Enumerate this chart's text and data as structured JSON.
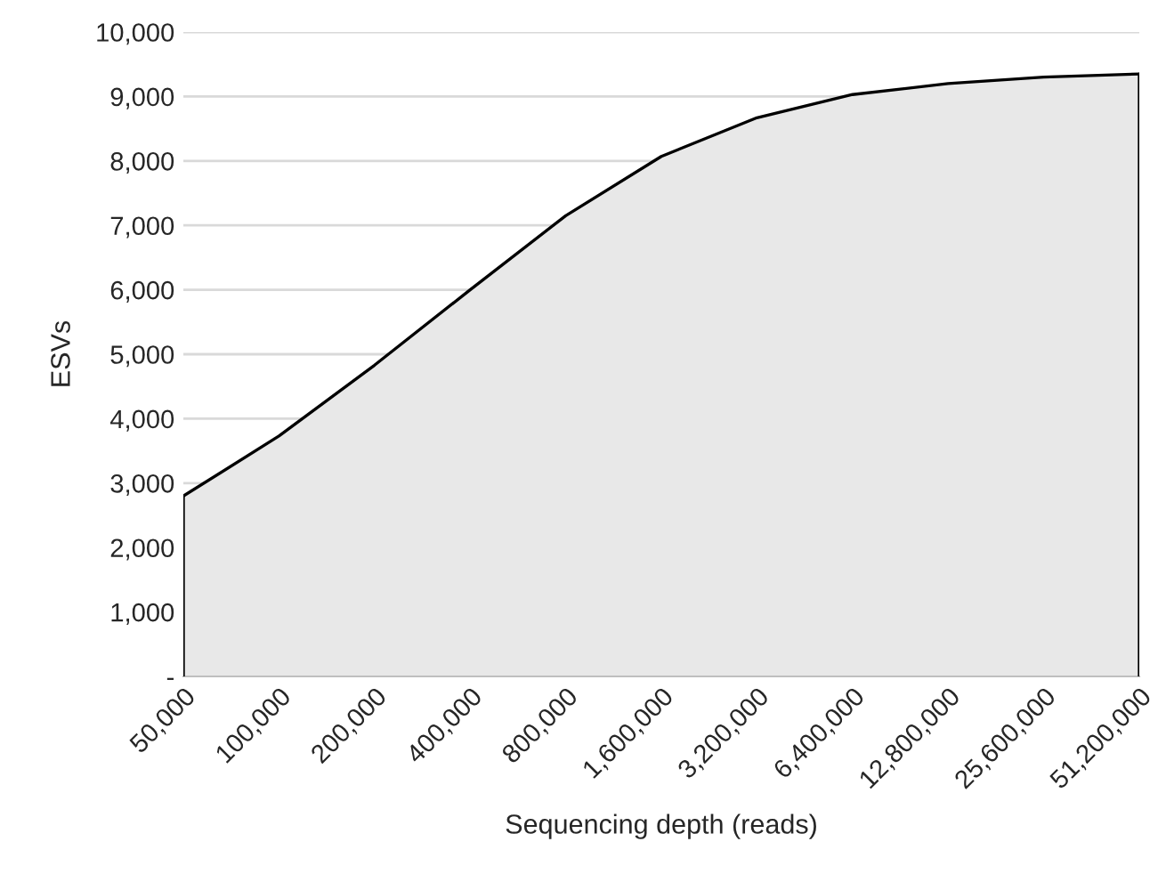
{
  "chart_data": {
    "type": "area",
    "xlabel": "Sequencing depth (reads)",
    "ylabel": "ESVs",
    "categories": [
      "50,000",
      "100,000",
      "200,000",
      "400,000",
      "800,000",
      "1,600,000",
      "3,200,000",
      "6,400,000",
      "12,800,000",
      "25,600,000",
      "51,200,000"
    ],
    "series": [
      {
        "color": "#e8e8e8",
        "values": [
          2800,
          3730,
          4830,
          6000,
          7150,
          8070,
          8670,
          9030,
          9200,
          9300,
          9350
        ]
      }
    ],
    "ylim": [
      0,
      10000
    ],
    "yticks": [
      {
        "value": 0,
        "label": "-"
      },
      {
        "value": 1000,
        "label": "1,000"
      },
      {
        "value": 2000,
        "label": "2,000"
      },
      {
        "value": 3000,
        "label": "3,000"
      },
      {
        "value": 4000,
        "label": "4,000"
      },
      {
        "value": 5000,
        "label": "5,000"
      },
      {
        "value": 6000,
        "label": "6,000"
      },
      {
        "value": 7000,
        "label": "7,000"
      },
      {
        "value": 8000,
        "label": "8,000"
      },
      {
        "value": 9000,
        "label": "9,000"
      },
      {
        "value": 10000,
        "label": "10,000"
      }
    ],
    "grid": "y"
  }
}
